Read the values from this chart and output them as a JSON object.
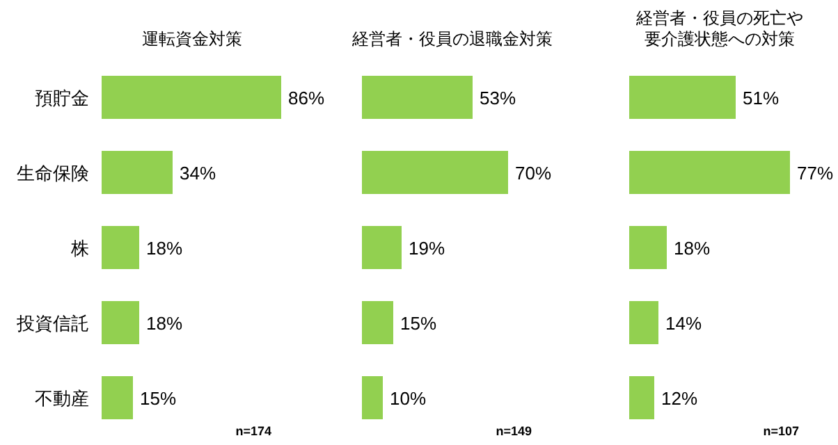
{
  "chart_data": [
    {
      "type": "bar",
      "orientation": "horizontal",
      "title": "運転資金対策",
      "categories": [
        "預貯金",
        "生命保険",
        "株",
        "投資信託",
        "不動産"
      ],
      "values": [
        86,
        34,
        18,
        18,
        15
      ],
      "value_labels": [
        "86%",
        "34%",
        "18%",
        "18%",
        "15%"
      ],
      "color": "#92d050",
      "annotations": [
        "n=174"
      ]
    },
    {
      "type": "bar",
      "orientation": "horizontal",
      "title": "経営者・役員の退職金対策",
      "categories": [
        null,
        null,
        null,
        null,
        null
      ],
      "values": [
        53,
        70,
        19,
        15,
        10
      ],
      "value_labels": [
        "53%",
        "70%",
        "19%",
        "15%",
        "10%"
      ],
      "color": "#92d050",
      "annotations": [
        "n=149"
      ]
    },
    {
      "type": "bar",
      "orientation": "horizontal",
      "title": "経営者・役員の死亡や要介護状態への対策",
      "categories": [
        null,
        null,
        null,
        null,
        null
      ],
      "values": [
        51,
        77,
        18,
        14,
        12
      ],
      "value_labels": [
        "51%",
        "77%",
        "18%",
        "14%",
        "12%"
      ],
      "color": "#92d050",
      "annotations": [
        "n=107"
      ]
    }
  ]
}
